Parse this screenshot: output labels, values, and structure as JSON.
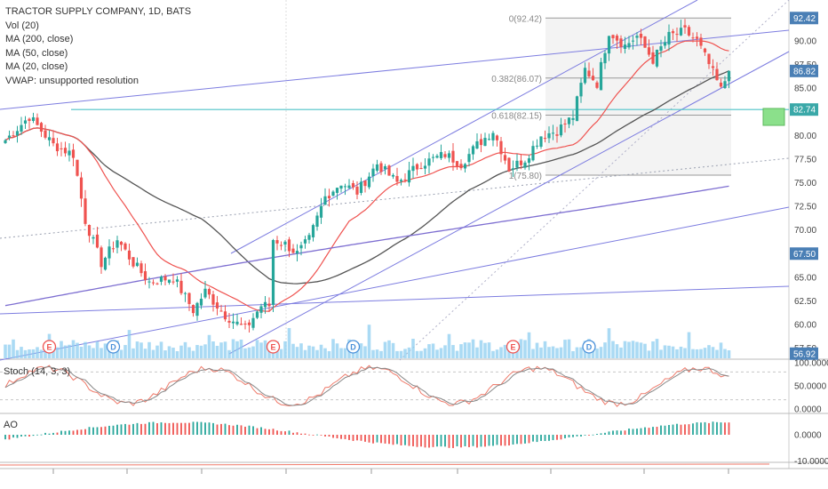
{
  "legend": {
    "title": "TRACTOR SUPPLY COMPANY, 1D, BATS",
    "vol": "Vol (20)",
    "ma200": "MA (200, close)",
    "ma50": "MA (50, close)",
    "ma20": "MA (20, close)",
    "vwap": "VWAP: unsupported resolution"
  },
  "colors": {
    "up": "#26a69a",
    "down": "#ef5350",
    "ma20": "#ef5350",
    "ma50": "#555555",
    "ma200": "#7e6fd1",
    "channel": "#7d7de0",
    "hline": "#4fc3c9",
    "axis_tag": "#4a7fb5",
    "volume": "#8ecdf0",
    "green_box": "#8be08b"
  },
  "chart_data": [
    {
      "type": "candlestick",
      "name": "price",
      "title": "TRACTOR SUPPLY COMPANY, 1D, BATS",
      "ylim": [
        56.0,
        93.5
      ],
      "y_ticks": [
        "90.00",
        "87.50",
        "85.00",
        "82.50",
        "80.00",
        "77.50",
        "75.00",
        "72.50",
        "70.00",
        "67.50",
        "65.00",
        "62.50",
        "60.00",
        "57.50"
      ],
      "price_tags": [
        {
          "label": "92.42",
          "value": 92.42
        },
        {
          "label": "86.82",
          "value": 86.82
        },
        {
          "label": "82.74",
          "value": 82.74
        },
        {
          "label": "67.50",
          "value": 67.5
        },
        {
          "label": "56.92",
          "value": 56.92
        }
      ],
      "horizontal_line": 82.74,
      "fib": {
        "high": 92.42,
        "low": 75.8,
        "levels": [
          {
            "label": "0(92.42)",
            "value": 92.42
          },
          {
            "label": "0.382(86.07)",
            "value": 86.07
          },
          {
            "label": "0.618(82.15)",
            "value": 82.15
          },
          {
            "label": "1(75.80)",
            "value": 75.8
          }
        ]
      },
      "anchors": [
        {
          "i": 0,
          "p": 79.5
        },
        {
          "i": 6,
          "p": 82.0
        },
        {
          "i": 12,
          "p": 79.0
        },
        {
          "i": 17,
          "p": 78.0
        },
        {
          "i": 20,
          "p": 71.0
        },
        {
          "i": 24,
          "p": 66.5
        },
        {
          "i": 28,
          "p": 69.0
        },
        {
          "i": 32,
          "p": 66.5
        },
        {
          "i": 36,
          "p": 64.5
        },
        {
          "i": 42,
          "p": 65.0
        },
        {
          "i": 47,
          "p": 61.5
        },
        {
          "i": 50,
          "p": 63.5
        },
        {
          "i": 55,
          "p": 61.0
        },
        {
          "i": 60,
          "p": 59.5
        },
        {
          "i": 64,
          "p": 62.0
        },
        {
          "i": 66,
          "p": 62.0
        },
        {
          "i": 67,
          "p": 69.0
        },
        {
          "i": 70,
          "p": 68.5
        },
        {
          "i": 73,
          "p": 67.5
        },
        {
          "i": 76,
          "p": 69.0
        },
        {
          "i": 80,
          "p": 73.5
        },
        {
          "i": 84,
          "p": 75.0
        },
        {
          "i": 88,
          "p": 74.0
        },
        {
          "i": 93,
          "p": 77.0
        },
        {
          "i": 98,
          "p": 75.0
        },
        {
          "i": 104,
          "p": 77.0
        },
        {
          "i": 110,
          "p": 78.0
        },
        {
          "i": 114,
          "p": 77.0
        },
        {
          "i": 118,
          "p": 79.0
        },
        {
          "i": 122,
          "p": 80.5
        },
        {
          "i": 126,
          "p": 76.5
        },
        {
          "i": 130,
          "p": 77.5
        },
        {
          "i": 134,
          "p": 80.0
        },
        {
          "i": 138,
          "p": 80.5
        },
        {
          "i": 142,
          "p": 82.0
        },
        {
          "i": 145,
          "p": 87.0
        },
        {
          "i": 148,
          "p": 85.5
        },
        {
          "i": 151,
          "p": 91.0
        },
        {
          "i": 155,
          "p": 89.5
        },
        {
          "i": 158,
          "p": 90.5
        },
        {
          "i": 162,
          "p": 88.0
        },
        {
          "i": 166,
          "p": 90.5
        },
        {
          "i": 170,
          "p": 91.0
        },
        {
          "i": 173,
          "p": 90.0
        },
        {
          "i": 176,
          "p": 87.5
        },
        {
          "i": 179,
          "p": 84.8
        },
        {
          "i": 181,
          "p": 86.82
        }
      ],
      "events": [
        {
          "i": 11,
          "label": "E"
        },
        {
          "i": 27,
          "label": "D"
        },
        {
          "i": 67,
          "label": "E"
        },
        {
          "i": 87,
          "label": "D"
        },
        {
          "i": 127,
          "label": "E"
        },
        {
          "i": 146,
          "label": "D"
        }
      ]
    },
    {
      "type": "line",
      "name": "Stoch (14, 3, 3)",
      "ylim": [
        0,
        100
      ],
      "y_ticks": [
        "100.0000",
        "50.0000",
        "0.0000"
      ]
    },
    {
      "type": "bar",
      "name": "AO",
      "y_ticks": [
        "0.0000",
        "-10.0000"
      ]
    }
  ],
  "panes": {
    "stoch": "Stoch (14, 3, 3)",
    "ao": "AO"
  }
}
